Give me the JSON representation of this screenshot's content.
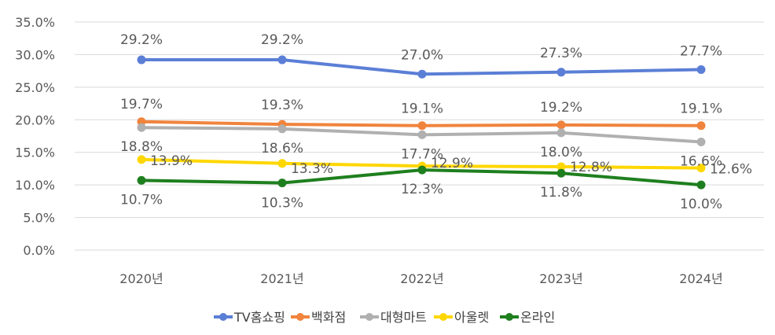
{
  "chart_data": {
    "type": "line",
    "title": "",
    "xlabel": "",
    "ylabel": "",
    "categories": [
      "2020년",
      "2021년",
      "2022년",
      "2023년",
      "2024년"
    ],
    "ylim": [
      0,
      35
    ],
    "yticks": [
      "0.0%",
      "5.0%",
      "10.0%",
      "15.0%",
      "20.0%",
      "25.0%",
      "30.0%",
      "35.0%"
    ],
    "grid": true,
    "legend_position": "bottom",
    "series": [
      {
        "name": "TV홈쇼핑",
        "color": "#5b7fd6",
        "values": [
          29.2,
          29.2,
          27.0,
          27.3,
          27.7
        ],
        "labels": [
          "29.2%",
          "29.2%",
          "27.0%",
          "27.3%",
          "27.7%"
        ]
      },
      {
        "name": "백화점",
        "color": "#f0843d",
        "values": [
          19.7,
          19.3,
          19.1,
          19.2,
          19.1
        ],
        "labels": [
          "19.7%",
          "19.3%",
          "19.1%",
          "19.2%",
          "19.1%"
        ]
      },
      {
        "name": "대형마트",
        "color": "#b0b0b0",
        "values": [
          18.8,
          18.6,
          17.7,
          18.0,
          16.6
        ],
        "labels": [
          "18.8%",
          "18.6%",
          "17.7%",
          "18.0%",
          "16.6%"
        ]
      },
      {
        "name": "아울렛",
        "color": "#ffd700",
        "values": [
          13.9,
          13.3,
          12.9,
          12.8,
          12.6
        ],
        "labels": [
          "13.9%",
          "13.3%",
          "12.9%",
          "12.8%",
          "12.6%"
        ]
      },
      {
        "name": "온라인",
        "color": "#1e7f1e",
        "values": [
          10.7,
          10.3,
          12.3,
          11.8,
          10.0
        ],
        "labels": [
          "10.7%",
          "10.3%",
          "12.3%",
          "11.8%",
          "10.0%"
        ]
      }
    ]
  }
}
